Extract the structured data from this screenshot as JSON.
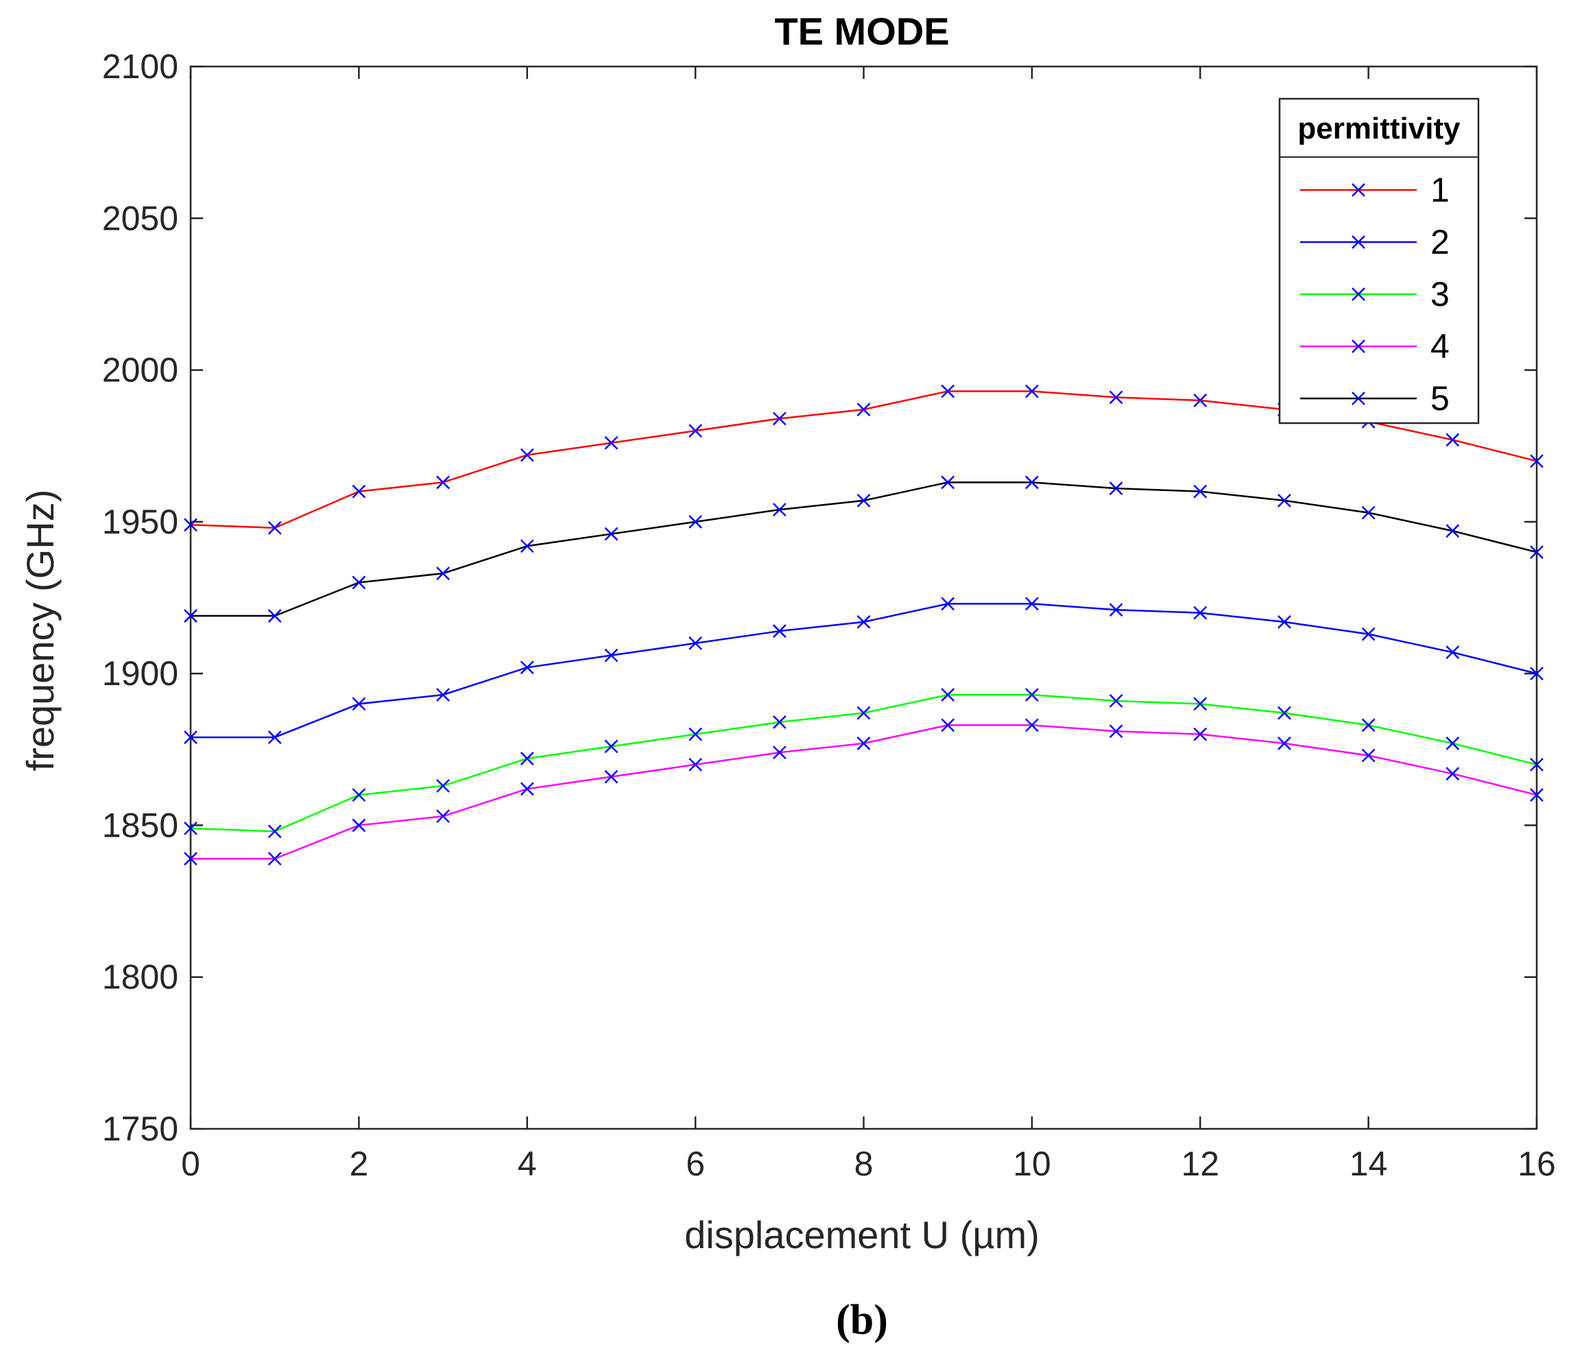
{
  "chart_data": {
    "type": "line",
    "title": "TE MODE",
    "xlabel": "displacement U (µm)",
    "ylabel": "frequency (GHz)",
    "xlim": [
      0,
      16
    ],
    "ylim": [
      1750,
      2100
    ],
    "xticks": [
      0,
      2,
      4,
      6,
      8,
      10,
      12,
      14,
      16
    ],
    "yticks": [
      1750,
      1800,
      1850,
      1900,
      1950,
      2000,
      2050,
      2100
    ],
    "grid": false,
    "marker": "x",
    "marker_color": "#0000ff",
    "legend": {
      "title": "permittivity",
      "position": "top-right"
    },
    "x": [
      0,
      1,
      2,
      3,
      4,
      5,
      6,
      7,
      8,
      9,
      10,
      11,
      12,
      13,
      14,
      15,
      16
    ],
    "series": [
      {
        "name": "1",
        "color": "#ff0000",
        "values": [
          1949,
          1948,
          1960,
          1963,
          1972,
          1976,
          1980,
          1984,
          1987,
          1993,
          1993,
          1991,
          1990,
          1987,
          1983,
          1977,
          1970
        ]
      },
      {
        "name": "2",
        "color": "#0000ff",
        "values": [
          1879,
          1879,
          1890,
          1893,
          1902,
          1906,
          1910,
          1914,
          1917,
          1923,
          1923,
          1921,
          1920,
          1917,
          1913,
          1907,
          1900
        ]
      },
      {
        "name": "3",
        "color": "#00ff00",
        "values": [
          1849,
          1848,
          1860,
          1863,
          1872,
          1876,
          1880,
          1884,
          1887,
          1893,
          1893,
          1891,
          1890,
          1887,
          1883,
          1877,
          1870
        ]
      },
      {
        "name": "4",
        "color": "#ff00ff",
        "values": [
          1839,
          1839,
          1850,
          1853,
          1862,
          1866,
          1870,
          1874,
          1877,
          1883,
          1883,
          1881,
          1880,
          1877,
          1873,
          1867,
          1860
        ]
      },
      {
        "name": "5",
        "color": "#000000",
        "values": [
          1919,
          1919,
          1930,
          1933,
          1942,
          1946,
          1950,
          1954,
          1957,
          1963,
          1963,
          1961,
          1960,
          1957,
          1953,
          1947,
          1940
        ]
      }
    ]
  },
  "caption": "(b)"
}
